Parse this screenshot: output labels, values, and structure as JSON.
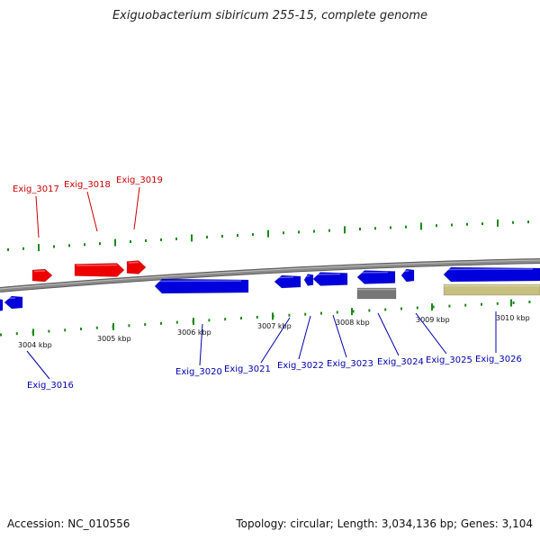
{
  "title": "Exiguobacterium sibiricum 255-15, complete genome",
  "footer": {
    "accession": "Accession: NC_010556",
    "summary": "Topology: circular; Length: 3,034,136 bp; Genes: 3,104"
  },
  "colors": {
    "forward_gene": "#ee0000",
    "reverse_gene": "#0000dd",
    "pseudo_gene": "#777777",
    "rna_feature": "#c7bf7e",
    "backbone": "#8a8a8a",
    "tick": "#1a8a1a",
    "forward_label": "#cc0000",
    "reverse_label": "#0000aa"
  },
  "ticks": [
    {
      "label": "3004 kbp"
    },
    {
      "label": "3005 kbp"
    },
    {
      "label": "3006 kbp"
    },
    {
      "label": "3007 kbp"
    },
    {
      "label": "3008 kbp"
    },
    {
      "label": "3009 kbp"
    },
    {
      "label": "3010 kbp"
    }
  ],
  "forward_genes": [
    {
      "name": "Exig_3017"
    },
    {
      "name": "Exig_3018"
    },
    {
      "name": "Exig_3019"
    }
  ],
  "reverse_genes": [
    {
      "name": "Exig_3016"
    },
    {
      "name": "Exig_3020"
    },
    {
      "name": "Exig_3021"
    },
    {
      "name": "Exig_3022"
    },
    {
      "name": "Exig_3023"
    },
    {
      "name": "Exig_3024"
    },
    {
      "name": "Exig_3025"
    },
    {
      "name": "Exig_3026"
    }
  ]
}
